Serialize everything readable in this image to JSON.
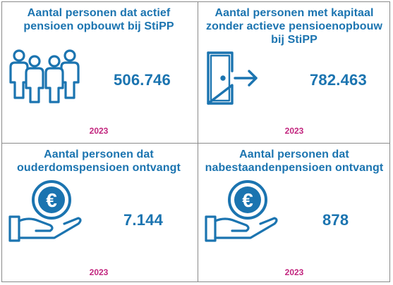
{
  "cards": [
    {
      "title": "Aantal personen dat actief pensioen opbouwt bij StiPP",
      "value": "506.746",
      "year": "2023",
      "icon": "people-group-icon"
    },
    {
      "title": "Aantal personen met kapitaal zonder actieve pensioenopbouw bij StiPP",
      "value": "782.463",
      "year": "2023",
      "icon": "door-exit-icon"
    },
    {
      "title": "Aantal personen dat ouderdomspensioen ontvangt",
      "value": "7.144",
      "year": "2023",
      "icon": "hand-euro-coin-icon"
    },
    {
      "title": "Aantal personen dat nabestaandenpensioen ontvangt",
      "value": "878",
      "year": "2023",
      "icon": "hand-euro-coin-icon"
    }
  ],
  "colors": {
    "accent": "#1b74b0",
    "year": "#c2257e",
    "border": "#8a8a8a"
  }
}
